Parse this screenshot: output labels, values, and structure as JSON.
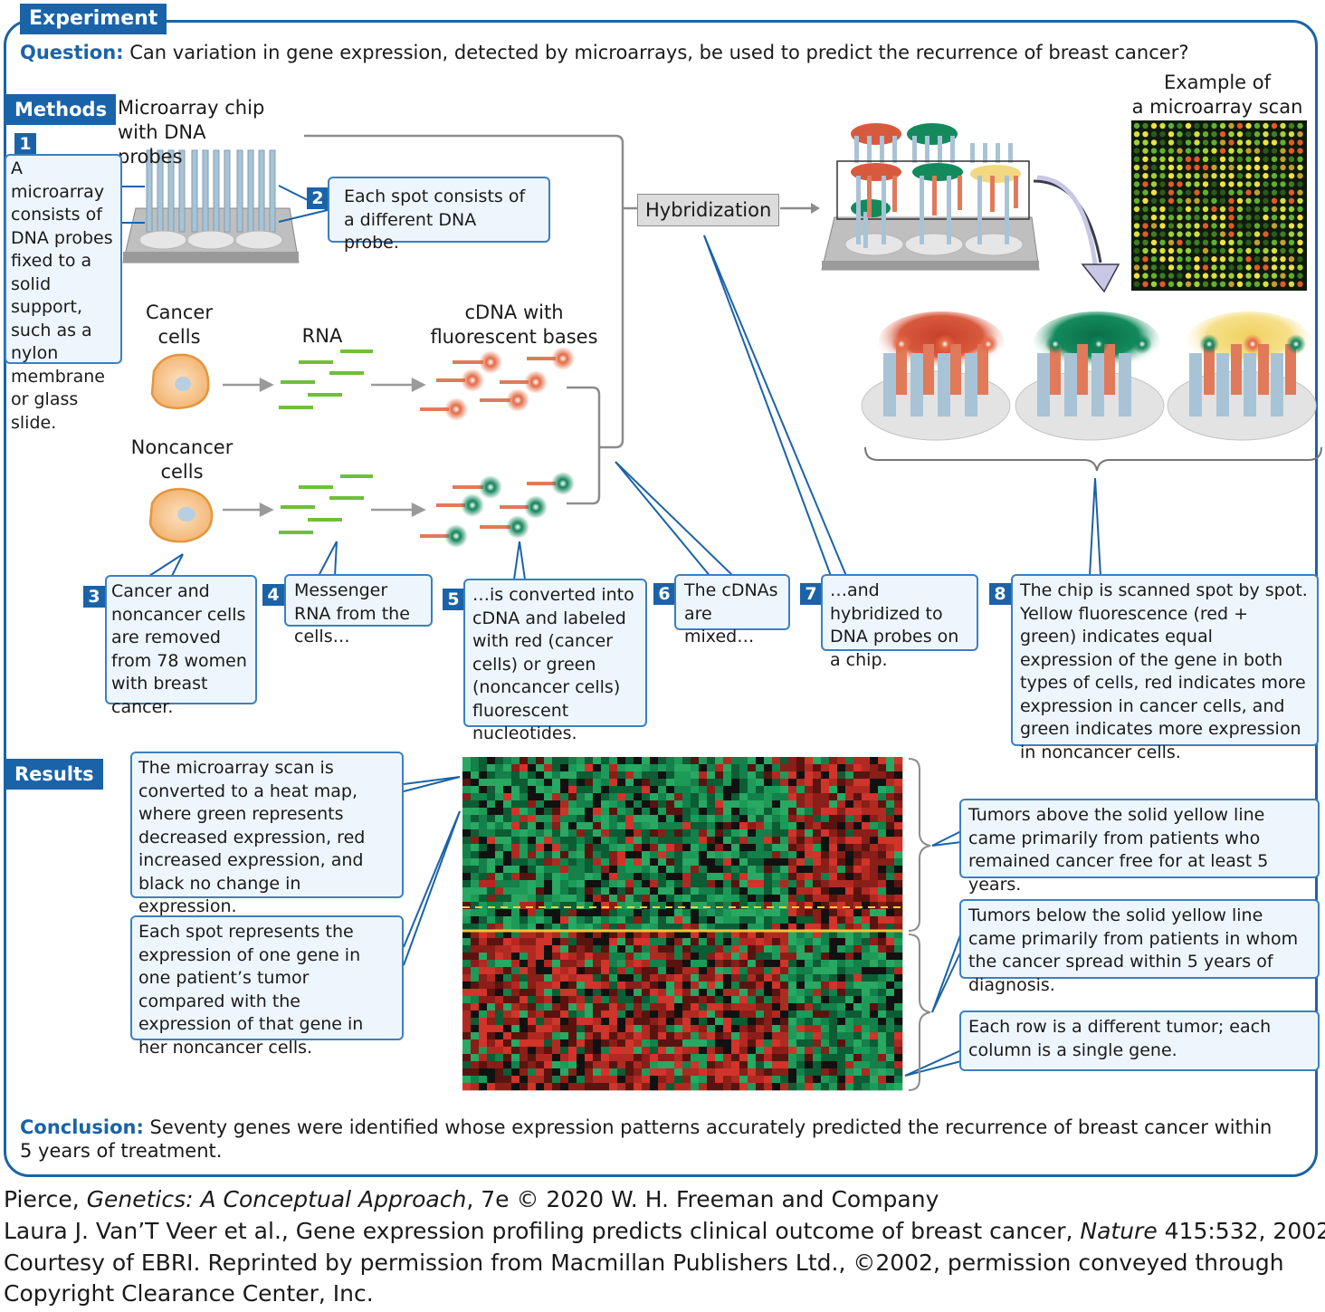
{
  "header": {
    "experiment_tag": "Experiment",
    "question_label": "Question:",
    "question_text": "Can variation in gene expression, detected by microarrays, be used to predict the recurrence of breast cancer?"
  },
  "methods": {
    "tag": "Methods",
    "chip_label_1": "Microarray chip",
    "chip_label_2": "with DNA probes",
    "scan_label_1": "Example of",
    "scan_label_2": "a microarray scan",
    "hybridization": "Hybridization",
    "cancer_cells_1": "Cancer",
    "cancer_cells_2": "cells",
    "rna": "RNA",
    "cdna_1": "cDNA with",
    "cdna_2": "fluorescent bases",
    "noncancer_1": "Noncancer",
    "noncancer_2": "cells",
    "steps": [
      {
        "num": "1",
        "text": "A microarray consists of DNA probes fixed to a solid support, such as a nylon membrane or glass slide."
      },
      {
        "num": "2",
        "text": "Each spot consists of a different DNA probe."
      },
      {
        "num": "3",
        "text": "Cancer and noncancer cells are removed from 78 women with breast cancer."
      },
      {
        "num": "4",
        "text": "Messenger RNA from the cells…"
      },
      {
        "num": "5",
        "text": "…is converted into cDNA and labeled with red (cancer cells) or green (noncancer cells) fluorescent nucleotides."
      },
      {
        "num": "6",
        "text": "The cDNAs are mixed…"
      },
      {
        "num": "7",
        "text": "…and hybridized to DNA probes on a chip."
      },
      {
        "num": "8",
        "text": "The chip is scanned spot by spot. Yellow fluorescence (red + green) indicates equal expression of the gene in both types of cells, red indicates more expression in cancer cells, and green indicates more expression in noncancer cells."
      }
    ]
  },
  "results": {
    "tag": "Results",
    "note_heatmap": "The microarray scan is converted to a heat map, where green represents decreased expression, red increased expression, and black no change in expression.",
    "note_spot": "Each spot represents the expression of one gene in one patient’s tumor compared with the expression of that gene in her noncancer cells.",
    "note_above": "Tumors above the solid yellow line came primarily from patients who remained cancer free for at least 5 years.",
    "note_below": "Tumors below the solid yellow line came primarily from patients in whom the cancer spread within 5 years of diagnosis.",
    "note_rows": "Each row is a different tumor; each column is a single gene."
  },
  "conclusion": {
    "label": "Conclusion:",
    "text_1": "Seventy genes were identified whose expression patterns accurately predicted the recurrence of breast cancer within",
    "text_2": "5 years of treatment."
  },
  "credits": {
    "line1_pre": "Pierce, ",
    "line1_title": "Genetics: A Conceptual Approach",
    "line1_post": ", 7e © 2020 W. H. Freeman and Company",
    "line2_pre": "Laura J. Van’T Veer et al., Gene expression profiling predicts clinical outcome of breast cancer, ",
    "line2_journal": "Nature",
    "line2_post": " 415:532, 2002.",
    "line3": "Courtesy of EBRI. Reprinted by permission from Macmillan Publishers Ltd., ©2002, permission conveyed through",
    "line4": "Copyright Clearance Center, Inc."
  },
  "colors": {
    "accent": "#1a63a8",
    "red": "#d24a2a",
    "green": "#0f8a5c",
    "yellow": "#f2d23a"
  }
}
